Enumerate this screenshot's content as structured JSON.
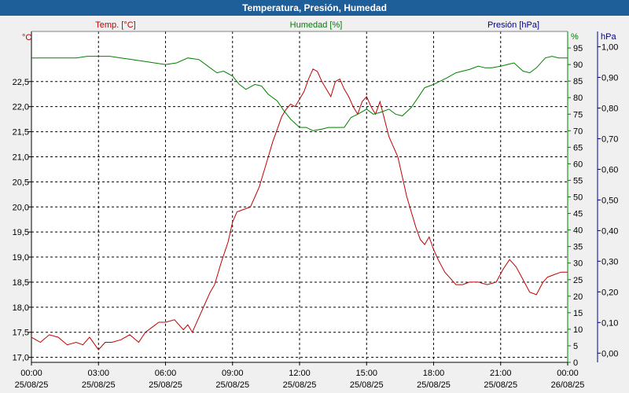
{
  "window": {
    "title": "Temperatura, Presión, Humedad"
  },
  "colors": {
    "temperature": "#c00000",
    "humidity": "#008000",
    "pressure": "#00008b",
    "title_bar": "#1f5f99",
    "plot_background": "#ffffff",
    "grid": "#000000"
  },
  "chart_data": {
    "type": "line",
    "title": "Temperatura, Presión, Humedad",
    "grid": true,
    "x_axis": {
      "ticks": [
        {
          "time": "00:00",
          "date": "25/08/25"
        },
        {
          "time": "03:00",
          "date": "25/08/25"
        },
        {
          "time": "06:00",
          "date": "25/08/25"
        },
        {
          "time": "09:00",
          "date": "25/08/25"
        },
        {
          "time": "12:00",
          "date": "25/08/25"
        },
        {
          "time": "15:00",
          "date": "25/08/25"
        },
        {
          "time": "18:00",
          "date": "25/08/25"
        },
        {
          "time": "21:00",
          "date": "25/08/25"
        },
        {
          "time": "00:00",
          "date": "26/08/25"
        }
      ],
      "range_hours": [
        0,
        24
      ]
    },
    "y_axes": {
      "temperature": {
        "label": "Temp. [°C]",
        "unit": "°C",
        "ylim": [
          16.9,
          23.5
        ],
        "ticks": [
          "17,0",
          "17,5",
          "18,0",
          "18,5",
          "19,0",
          "19,5",
          "20,0",
          "20,5",
          "21,0",
          "21,5",
          "22,0",
          "22,5"
        ]
      },
      "humidity": {
        "label": "Humedad [%]",
        "unit": "%",
        "ylim": [
          0,
          100
        ],
        "ticks": [
          "0",
          "5",
          "10",
          "15",
          "20",
          "25",
          "30",
          "35",
          "40",
          "45",
          "50",
          "55",
          "60",
          "65",
          "70",
          "75",
          "80",
          "85",
          "90",
          "95"
        ]
      },
      "pressure": {
        "label": "Presión [hPa]",
        "unit": "hPa",
        "ylim": [
          -0.03,
          1.05
        ],
        "ticks": [
          "0,00",
          "0,10",
          "0,20",
          "0,30",
          "0,40",
          "0,50",
          "0,60",
          "0,70",
          "0,80",
          "0,90",
          "1,00"
        ]
      }
    },
    "series": [
      {
        "name": "Temp. [°C]",
        "axis": "temperature",
        "x_hours": [
          0,
          0.4,
          0.8,
          1.2,
          1.6,
          2.0,
          2.3,
          2.6,
          3.0,
          3.3,
          3.6,
          4.0,
          4.4,
          4.8,
          5.1,
          5.4,
          5.7,
          6.0,
          6.4,
          6.8,
          7.0,
          7.2,
          7.5,
          7.8,
          8.0,
          8.2,
          8.5,
          8.8,
          9.0,
          9.2,
          9.5,
          9.8,
          10.0,
          10.2,
          10.4,
          10.6,
          10.8,
          11.0,
          11.2,
          11.4,
          11.6,
          11.8,
          12.0,
          12.2,
          12.4,
          12.6,
          12.8,
          13.0,
          13.2,
          13.4,
          13.6,
          13.8,
          14.0,
          14.2,
          14.4,
          14.6,
          14.8,
          15.0,
          15.2,
          15.4,
          15.6,
          15.8,
          16.0,
          16.2,
          16.4,
          16.6,
          16.8,
          17.0,
          17.2,
          17.4,
          17.6,
          17.8,
          18.0,
          18.2,
          18.5,
          18.8,
          19.0,
          19.3,
          19.6,
          20.0,
          20.4,
          20.8,
          21.1,
          21.4,
          21.7,
          22.0,
          22.3,
          22.6,
          22.9,
          23.1,
          23.4,
          23.7,
          24.0
        ],
        "values": [
          17.4,
          17.3,
          17.45,
          17.4,
          17.25,
          17.3,
          17.25,
          17.4,
          17.15,
          17.3,
          17.3,
          17.35,
          17.45,
          17.3,
          17.5,
          17.6,
          17.7,
          17.7,
          17.75,
          17.55,
          17.65,
          17.5,
          17.8,
          18.1,
          18.3,
          18.45,
          18.9,
          19.3,
          19.7,
          19.9,
          19.95,
          20.0,
          20.2,
          20.4,
          20.7,
          21.0,
          21.3,
          21.55,
          21.8,
          21.95,
          22.05,
          22.0,
          22.15,
          22.3,
          22.55,
          22.75,
          22.7,
          22.5,
          22.35,
          22.2,
          22.5,
          22.55,
          22.35,
          22.2,
          22.0,
          21.85,
          22.1,
          22.2,
          22.0,
          21.85,
          22.1,
          21.75,
          21.4,
          21.2,
          21.0,
          20.6,
          20.2,
          19.9,
          19.6,
          19.35,
          19.25,
          19.4,
          19.15,
          18.95,
          18.7,
          18.55,
          18.45,
          18.45,
          18.5,
          18.5,
          18.45,
          18.5,
          18.75,
          18.95,
          18.8,
          18.55,
          18.3,
          18.25,
          18.5,
          18.6,
          18.65,
          18.7,
          18.7
        ]
      },
      {
        "name": "Humedad [%]",
        "axis": "humidity",
        "x_hours": [
          0,
          0.5,
          1.0,
          1.5,
          2.0,
          2.5,
          3.0,
          3.5,
          4.0,
          4.5,
          5.0,
          5.5,
          6.0,
          6.5,
          7.0,
          7.5,
          8.0,
          8.3,
          8.6,
          9.0,
          9.3,
          9.6,
          10.0,
          10.3,
          10.6,
          11.0,
          11.3,
          11.6,
          12.0,
          12.3,
          12.6,
          13.0,
          13.3,
          13.6,
          14.0,
          14.3,
          14.6,
          15.0,
          15.3,
          15.6,
          16.0,
          16.3,
          16.6,
          17.0,
          17.3,
          17.6,
          18.0,
          18.3,
          18.6,
          19.0,
          19.3,
          19.6,
          20.0,
          20.3,
          20.6,
          21.0,
          21.3,
          21.6,
          22.0,
          22.3,
          22.6,
          23.0,
          23.3,
          23.6,
          24.0
        ],
        "values": [
          92,
          92,
          92,
          92,
          92,
          92.5,
          92.5,
          92.5,
          92,
          91.5,
          91,
          90.5,
          90,
          90.5,
          92,
          91.5,
          89,
          87.5,
          88,
          86.5,
          84,
          82.5,
          84,
          83.5,
          81,
          79,
          76,
          73.5,
          71,
          71,
          70,
          70.5,
          71,
          71,
          71,
          74,
          75,
          76.5,
          75,
          75.5,
          76.5,
          75,
          74.5,
          77,
          80,
          83,
          84,
          85,
          86,
          87.5,
          88,
          88.5,
          89.5,
          89,
          89,
          89.5,
          90,
          90.5,
          88,
          87.5,
          89,
          92,
          92.5,
          92,
          92
        ]
      }
    ]
  }
}
